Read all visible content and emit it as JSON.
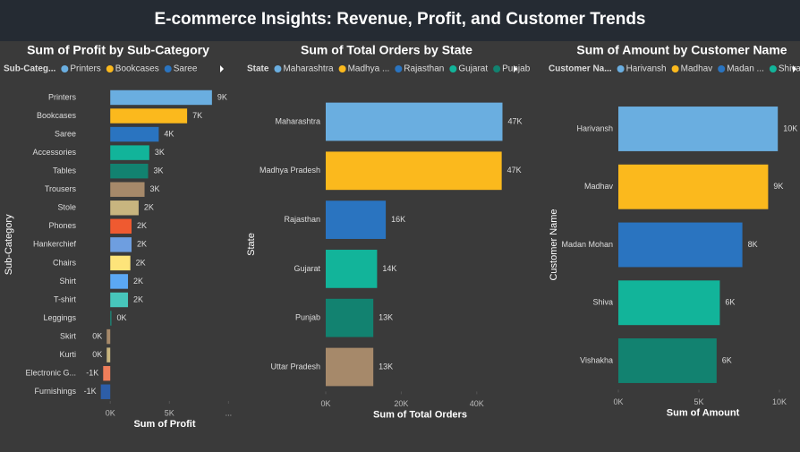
{
  "title": "E-commerce Insights: Revenue, Profit, and Customer Trends",
  "chart_data": [
    {
      "type": "bar",
      "orientation": "horizontal",
      "title": "Sum of Profit by Sub-Category",
      "legend": {
        "title": "Sub-Categ...",
        "items": [
          "Printers",
          "Bookcases",
          "Saree"
        ]
      },
      "categories": [
        "Printers",
        "Bookcases",
        "Saree",
        "Accessories",
        "Tables",
        "Trousers",
        "Stole",
        "Phones",
        "Hankerchief",
        "Chairs",
        "Shirt",
        "T-shirt",
        "Leggings",
        "Skirt",
        "Kurti",
        "Electronic G...",
        "Furnishings"
      ],
      "values": [
        8600,
        6500,
        4100,
        3300,
        3200,
        2900,
        2400,
        1800,
        1800,
        1700,
        1500,
        1500,
        100,
        -300,
        -300,
        -600,
        -800
      ],
      "value_labels": [
        "9K",
        "7K",
        "4K",
        "3K",
        "3K",
        "3K",
        "2K",
        "2K",
        "2K",
        "2K",
        "2K",
        "2K",
        "0K",
        "0K",
        "0K",
        "-1K",
        "-1K"
      ],
      "colors": [
        "#6aaee0",
        "#fbb91d",
        "#2a74c0",
        "#12b49a",
        "#128270",
        "#a6896a",
        "#c8b57f",
        "#ef5a30",
        "#6e9ee0",
        "#fde47a",
        "#5ba8f4",
        "#47c6bb",
        "#1d8a7b",
        "#a6896a",
        "#c8b57f",
        "#ef7e5a",
        "#2d5ea8"
      ],
      "xlim": [
        -1000,
        10200
      ],
      "xticks": [
        {
          "value": 0,
          "label": "0K"
        },
        {
          "value": 5000,
          "label": "5K"
        },
        {
          "value": 10000,
          "label": "..."
        }
      ],
      "xlabel": "Sum of Profit",
      "ylabel": "Sub-Category"
    },
    {
      "type": "bar",
      "orientation": "horizontal",
      "title": "Sum of Total Orders by State",
      "legend": {
        "title": "State",
        "items": [
          "Maharashtra",
          "Madhya ...",
          "Rajasthan",
          "Gujarat",
          "Punjab"
        ]
      },
      "categories": [
        "Maharashtra",
        "Madhya Pradesh",
        "Rajasthan",
        "Gujarat",
        "Punjab",
        "Uttar Pradesh"
      ],
      "values": [
        46800,
        46600,
        15900,
        13600,
        12600,
        12600
      ],
      "value_labels": [
        "47K",
        "47K",
        "16K",
        "14K",
        "13K",
        "13K"
      ],
      "colors": [
        "#6aaee0",
        "#fbb91d",
        "#2a74c0",
        "#12b49a",
        "#128270",
        "#a6896a"
      ],
      "xlim": [
        0,
        50000
      ],
      "xticks": [
        {
          "value": 0,
          "label": "0K"
        },
        {
          "value": 20000,
          "label": "20K"
        },
        {
          "value": 40000,
          "label": "40K"
        }
      ],
      "xlabel": "Sum of Total Orders",
      "ylabel": "State"
    },
    {
      "type": "bar",
      "orientation": "horizontal",
      "title": "Sum of Amount by Customer Name",
      "legend": {
        "title": "Customer Na...",
        "items": [
          "Harivansh",
          "Madhav",
          "Madan ...",
          "Shiva"
        ]
      },
      "categories": [
        "Harivansh",
        "Madhav",
        "Madan Mohan",
        "Shiva",
        "Vishakha"
      ],
      "values": [
        9900,
        9300,
        7700,
        6300,
        6100
      ],
      "value_labels": [
        "10K",
        "9K",
        "8K",
        "6K",
        "6K"
      ],
      "colors": [
        "#6aaee0",
        "#fbb91d",
        "#2a74c0",
        "#12b49a",
        "#128270"
      ],
      "xlim": [
        0,
        10500
      ],
      "xticks": [
        {
          "value": 0,
          "label": "0K"
        },
        {
          "value": 5000,
          "label": "5K"
        },
        {
          "value": 10000,
          "label": "10K"
        }
      ],
      "xlabel": "Sum of Amount",
      "ylabel": "Customer Name"
    }
  ]
}
